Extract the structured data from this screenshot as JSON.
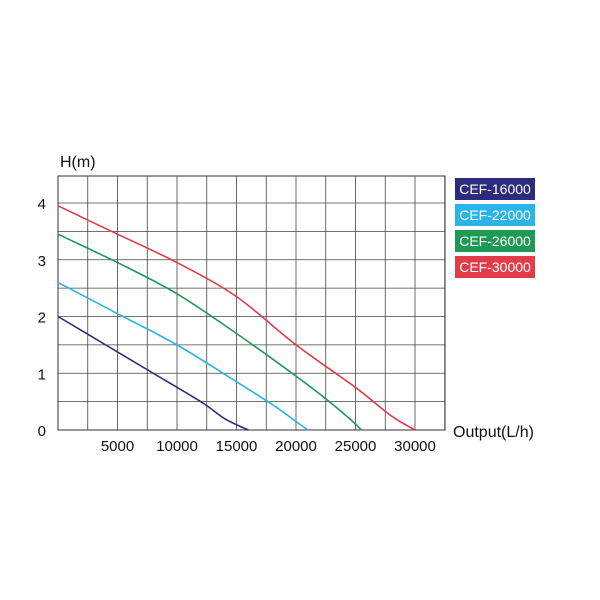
{
  "chart_data": {
    "type": "line",
    "ylabel": "H(m)",
    "xlabel": "Output(L/h)",
    "xlim": [
      0,
      30000
    ],
    "ylim": [
      0,
      4
    ],
    "x_ticks": [
      "5000",
      "10000",
      "15000",
      "20000",
      "25000",
      "30000"
    ],
    "y_ticks": [
      "0",
      "1",
      "2",
      "3",
      "4"
    ],
    "grid": true,
    "legend_position": "right",
    "series": [
      {
        "name": "CEF-16000",
        "color": "#2e2a7e",
        "points": [
          [
            0,
            2.0
          ],
          [
            4000,
            1.5
          ],
          [
            8000,
            1.0
          ],
          [
            12000,
            0.5
          ],
          [
            14000,
            0.2
          ],
          [
            16000,
            0.0
          ]
        ]
      },
      {
        "name": "CEF-22000",
        "color": "#2ab4e8",
        "points": [
          [
            0,
            2.6
          ],
          [
            5000,
            2.05
          ],
          [
            10000,
            1.5
          ],
          [
            15000,
            0.85
          ],
          [
            18000,
            0.45
          ],
          [
            20000,
            0.15
          ],
          [
            21000,
            0.0
          ]
        ]
      },
      {
        "name": "CEF-26000",
        "color": "#1f9a56",
        "points": [
          [
            0,
            3.45
          ],
          [
            5000,
            2.95
          ],
          [
            10000,
            2.4
          ],
          [
            15000,
            1.7
          ],
          [
            20000,
            0.95
          ],
          [
            22500,
            0.55
          ],
          [
            24500,
            0.2
          ],
          [
            25500,
            0.0
          ]
        ]
      },
      {
        "name": "CEF-30000",
        "color": "#e23c48",
        "points": [
          [
            0,
            3.95
          ],
          [
            5000,
            3.45
          ],
          [
            10000,
            2.95
          ],
          [
            15000,
            2.35
          ],
          [
            20000,
            1.5
          ],
          [
            25000,
            0.75
          ],
          [
            28000,
            0.25
          ],
          [
            30000,
            0.0
          ]
        ]
      }
    ]
  }
}
